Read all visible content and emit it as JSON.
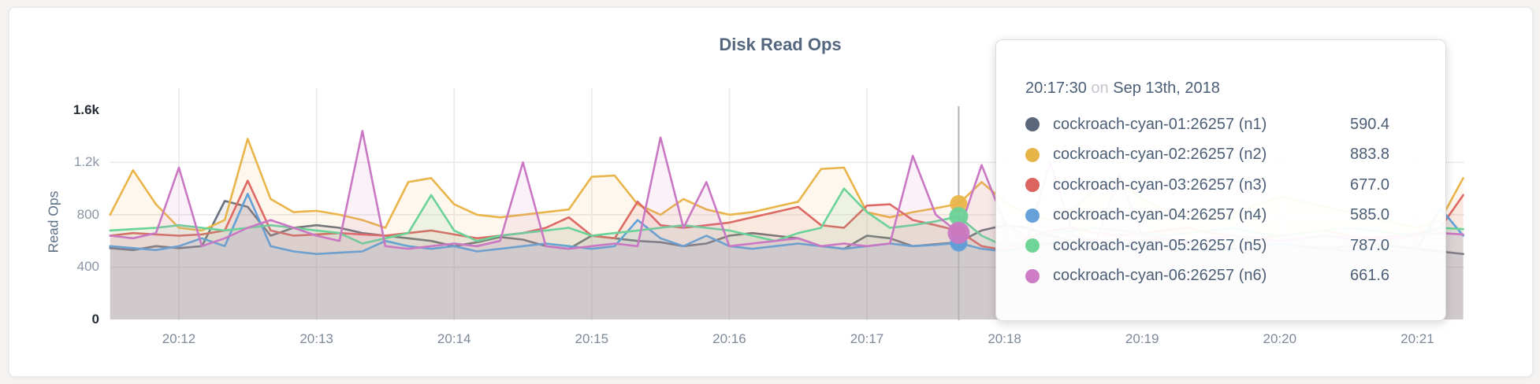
{
  "chart": {
    "title": "Disk Read Ops",
    "y_axis": {
      "label": "Read Ops",
      "ticks": [
        {
          "label": "0",
          "value": 0,
          "bold": true
        },
        {
          "label": "400",
          "value": 400,
          "bold": false
        },
        {
          "label": "800",
          "value": 800,
          "bold": false
        },
        {
          "label": "1.2k",
          "value": 1200,
          "bold": false
        },
        {
          "label": "1.6k",
          "value": 1600,
          "bold": true
        }
      ]
    },
    "x_axis": {
      "ticks": [
        "20:12",
        "20:13",
        "20:14",
        "20:15",
        "20:16",
        "20:17",
        "20:18",
        "20:19",
        "20:20",
        "20:21"
      ]
    }
  },
  "tooltip": {
    "time": "20:17:30",
    "connector": "on",
    "date": "Sep 13th, 2018",
    "rows": [
      {
        "label": "cockroach-cyan-01:26257 (n1)",
        "value": "590.4",
        "color": "#5a6679"
      },
      {
        "label": "cockroach-cyan-02:26257 (n2)",
        "value": "883.8",
        "color": "#e7b547"
      },
      {
        "label": "cockroach-cyan-03:26257 (n3)",
        "value": "677.0",
        "color": "#dd6560"
      },
      {
        "label": "cockroach-cyan-04:26257 (n4)",
        "value": "585.0",
        "color": "#66a1da"
      },
      {
        "label": "cockroach-cyan-05:26257 (n5)",
        "value": "787.0",
        "color": "#6fd597"
      },
      {
        "label": "cockroach-cyan-06:26257 (n6)",
        "value": "661.6",
        "color": "#cd7cc5"
      }
    ]
  },
  "chart_data": {
    "type": "line",
    "title": "Disk Read Ops",
    "ylabel": "Read Ops",
    "ylim": [
      0,
      1600
    ],
    "yticks": [
      0,
      400,
      800,
      1200,
      1600
    ],
    "grid": true,
    "x_start": "20:11:30",
    "x_step_seconds": 10,
    "x_tick_labels": [
      "20:12",
      "20:13",
      "20:14",
      "20:15",
      "20:16",
      "20:17",
      "20:18",
      "20:19",
      "20:20",
      "20:21"
    ],
    "hover": {
      "time": "20:17:30",
      "index": 37,
      "date": "Sep 13th, 2018"
    },
    "series": [
      {
        "name": "cockroach-cyan-01:26257 (n1)",
        "color": "#67707f",
        "hover_value": 590.4,
        "values": [
          545,
          530,
          560,
          545,
          560,
          905,
          860,
          640,
          700,
          720,
          700,
          660,
          640,
          620,
          600,
          560,
          590,
          630,
          610,
          560,
          540,
          640,
          620,
          600,
          590,
          560,
          580,
          640,
          660,
          640,
          620,
          560,
          540,
          640,
          620,
          560,
          575,
          590.4,
          680,
          720,
          700,
          640,
          600,
          580,
          560,
          600,
          620,
          580,
          560,
          540,
          560,
          580,
          560,
          540,
          560,
          580,
          560,
          540,
          520,
          500
        ]
      },
      {
        "name": "cockroach-cyan-02:26257 (n2)",
        "color": "#e9b54a",
        "hover_value": 883.8,
        "values": [
          800,
          1140,
          880,
          700,
          680,
          760,
          1380,
          920,
          820,
          830,
          800,
          760,
          700,
          1050,
          1080,
          880,
          800,
          780,
          800,
          820,
          840,
          1090,
          1100,
          880,
          800,
          920,
          840,
          800,
          820,
          860,
          900,
          1150,
          1160,
          820,
          780,
          820,
          850,
          883.8,
          1050,
          900,
          800,
          760,
          840,
          1000,
          1060,
          920,
          840,
          800,
          780,
          820,
          880,
          940,
          900,
          860,
          820,
          780,
          740,
          700,
          760,
          1080
        ]
      },
      {
        "name": "cockroach-cyan-03:26257 (n3)",
        "color": "#dd6a64",
        "hover_value": 677.0,
        "values": [
          640,
          660,
          650,
          640,
          650,
          680,
          1060,
          680,
          640,
          650,
          660,
          650,
          640,
          660,
          680,
          650,
          620,
          640,
          660,
          700,
          780,
          640,
          620,
          900,
          720,
          700,
          720,
          740,
          780,
          820,
          860,
          720,
          700,
          870,
          880,
          760,
          720,
          677,
          560,
          530,
          620,
          680,
          700,
          660,
          640,
          660,
          680,
          700,
          660,
          640,
          620,
          640,
          660,
          680,
          640,
          620,
          640,
          660,
          700,
          950
        ]
      },
      {
        "name": "cockroach-cyan-04:26257 (n4)",
        "color": "#62a0d9",
        "hover_value": 585.0,
        "values": [
          560,
          545,
          530,
          560,
          620,
          560,
          960,
          560,
          520,
          500,
          510,
          520,
          600,
          560,
          540,
          560,
          520,
          540,
          560,
          580,
          560,
          540,
          560,
          760,
          620,
          560,
          640,
          560,
          540,
          560,
          580,
          560,
          540,
          560,
          580,
          560,
          570,
          585,
          540,
          520,
          560,
          580,
          560,
          540,
          560,
          580,
          560,
          540,
          520,
          540,
          560,
          580,
          560,
          540,
          520,
          540,
          560,
          540,
          850,
          640
        ]
      },
      {
        "name": "cockroach-cyan-05:26257 (n5)",
        "color": "#6bd298",
        "hover_value": 787.0,
        "values": [
          680,
          690,
          700,
          720,
          700,
          680,
          700,
          720,
          700,
          680,
          660,
          580,
          620,
          660,
          950,
          680,
          600,
          640,
          660,
          680,
          700,
          640,
          660,
          680,
          700,
          720,
          700,
          680,
          640,
          600,
          660,
          700,
          1000,
          820,
          700,
          720,
          750,
          787,
          640,
          560,
          600,
          660,
          680,
          700,
          680,
          660,
          640,
          660,
          680,
          700,
          660,
          640,
          660,
          680,
          700,
          680,
          660,
          640,
          700,
          690
        ]
      },
      {
        "name": "cockroach-cyan-06:26257 (n6)",
        "color": "#ca78c3",
        "hover_value": 661.6,
        "values": [
          640,
          620,
          660,
          1160,
          560,
          620,
          700,
          760,
          700,
          640,
          600,
          1440,
          560,
          540,
          560,
          580,
          560,
          600,
          1200,
          560,
          540,
          560,
          580,
          560,
          1390,
          700,
          1050,
          560,
          580,
          600,
          620,
          560,
          580,
          560,
          580,
          1250,
          800,
          661.6,
          1180,
          740,
          620,
          1200,
          640,
          600,
          1100,
          640,
          620,
          600,
          620,
          640,
          620,
          600,
          620,
          640,
          620,
          600,
          620,
          640,
          660,
          650
        ]
      }
    ]
  }
}
